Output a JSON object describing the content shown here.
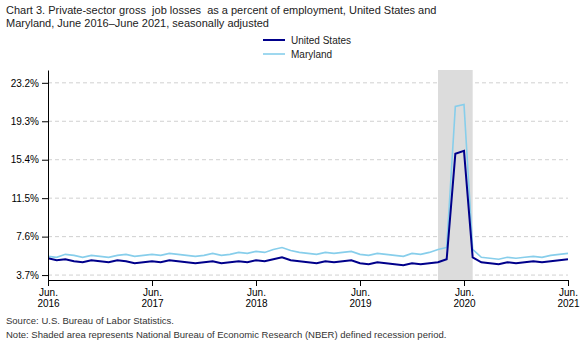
{
  "chart_data": {
    "type": "line",
    "title": "Chart 3. Private-sector gross  job losses  as a percent of employment, United States and\nMaryland, June 2016–June 2021, seasonally adjusted",
    "annotations": [
      "Source: U.S. Bureau of Labor Statistics.",
      "Note: Shaded area represents National Bureau of Economic Research (NBER) defined recession period."
    ],
    "categories": [
      "Jun.\n2016",
      null,
      null,
      null,
      null,
      null,
      null,
      null,
      null,
      null,
      null,
      null,
      "Jun.\n2017",
      null,
      null,
      null,
      null,
      null,
      null,
      null,
      null,
      null,
      null,
      null,
      "Jun.\n2018",
      null,
      null,
      null,
      null,
      null,
      null,
      null,
      null,
      null,
      null,
      null,
      "Jun.\n2019",
      null,
      null,
      null,
      null,
      null,
      null,
      null,
      null,
      null,
      null,
      null,
      "Jun.\n2020",
      null,
      null,
      null,
      null,
      null,
      null,
      null,
      null,
      null,
      null,
      null,
      "Jun.\n2021"
    ],
    "series": [
      {
        "name": "United States",
        "color": "#00008B",
        "values": [
          5.4,
          5.2,
          5.3,
          5.1,
          5.0,
          5.2,
          5.1,
          5.0,
          5.2,
          5.1,
          4.9,
          5.0,
          5.1,
          5.0,
          5.2,
          5.1,
          5.0,
          4.9,
          5.0,
          5.1,
          4.9,
          5.0,
          5.1,
          5.0,
          5.2,
          5.1,
          5.3,
          5.5,
          5.2,
          5.1,
          5.0,
          4.9,
          5.1,
          5.0,
          5.1,
          5.2,
          4.9,
          4.8,
          5.0,
          4.9,
          4.8,
          4.7,
          4.9,
          4.8,
          4.9,
          5.0,
          5.3,
          16.0,
          16.3,
          5.5,
          5.0,
          4.9,
          4.8,
          5.0,
          4.9,
          5.0,
          5.1,
          5.0,
          5.1,
          5.2,
          5.3
        ]
      },
      {
        "name": "Maryland",
        "color": "#87CEEB",
        "values": [
          5.6,
          5.5,
          5.8,
          5.7,
          5.5,
          5.7,
          5.6,
          5.5,
          5.7,
          5.8,
          5.6,
          5.7,
          5.8,
          5.7,
          5.9,
          5.8,
          5.7,
          5.6,
          5.7,
          5.9,
          5.7,
          5.8,
          6.0,
          5.9,
          6.1,
          6.0,
          6.3,
          6.5,
          6.2,
          6.0,
          5.9,
          5.8,
          6.0,
          5.9,
          6.0,
          6.1,
          5.8,
          5.7,
          5.9,
          5.8,
          5.7,
          5.6,
          5.9,
          5.8,
          6.0,
          6.3,
          6.5,
          20.8,
          21.0,
          6.3,
          5.5,
          5.4,
          5.3,
          5.5,
          5.4,
          5.5,
          5.6,
          5.5,
          5.7,
          5.8,
          5.9
        ]
      }
    ],
    "shaded_region": {
      "start": 45,
      "end": 49,
      "color": "#DCDCDC"
    },
    "ylim": [
      3.2,
      24.5
    ],
    "yticks": [
      {
        "value": 3.7,
        "label": "3.7%"
      },
      {
        "value": 7.6,
        "label": "7.6%"
      },
      {
        "value": 11.5,
        "label": "11.5%"
      },
      {
        "value": 15.4,
        "label": "15.4%"
      },
      {
        "value": 19.3,
        "label": "19.3%"
      },
      {
        "value": 23.2,
        "label": "23.2%"
      }
    ],
    "grid": true,
    "legend": "top"
  }
}
